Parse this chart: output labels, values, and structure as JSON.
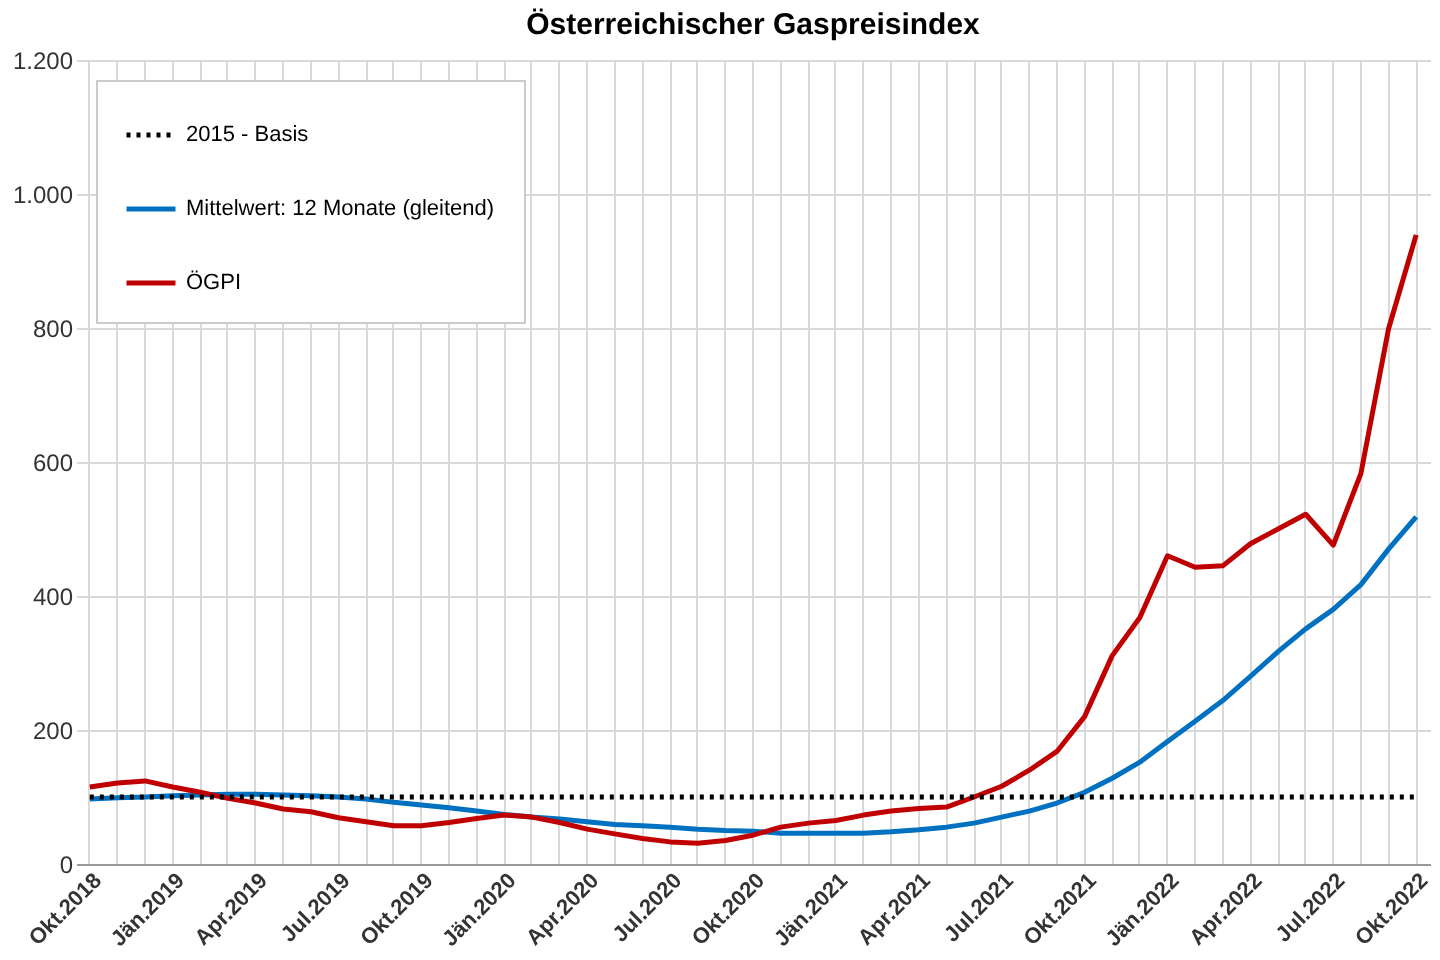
{
  "chart_data": {
    "type": "line",
    "title": "Österreichischer  Gaspreisindex",
    "categories": [
      "Okt.2018",
      null,
      null,
      "Jän.2019",
      null,
      null,
      "Apr.2019",
      null,
      null,
      "Jul.2019",
      null,
      null,
      "Okt.2019",
      null,
      null,
      "Jän.2020",
      null,
      null,
      "Apr.2020",
      null,
      null,
      "Jul.2020",
      null,
      null,
      "Okt.2020",
      null,
      null,
      "Jän.2021",
      null,
      null,
      "Apr.2021",
      null,
      null,
      "Jul.2021",
      null,
      null,
      "Okt.2021",
      null,
      null,
      "Jän.2022",
      null,
      null,
      "Apr.2022",
      null,
      null,
      "Jul.2022",
      null,
      null,
      "Okt.2022"
    ],
    "series": [
      {
        "name": "Mittelwert: 12 Monate (gleitend)",
        "color": "#0070c0",
        "values": [
          97,
          99,
          100,
          102,
          103,
          104,
          104,
          103,
          102,
          100,
          97,
          92,
          88,
          84,
          79,
          74,
          70,
          67,
          63,
          59,
          57,
          55,
          52,
          50,
          49,
          46,
          46,
          46,
          46,
          48,
          51,
          55,
          61,
          70,
          79,
          91,
          107,
          128,
          152,
          183,
          213,
          244,
          280,
          317,
          351,
          380,
          417,
          470,
          518
        ]
      },
      {
        "name": "ÖGPI",
        "color": "#c00000",
        "values": [
          115,
          121,
          124,
          115,
          107,
          98,
          91,
          82,
          78,
          69,
          63,
          57,
          57,
          62,
          68,
          73,
          70,
          62,
          52,
          45,
          38,
          33,
          31,
          35,
          43,
          55,
          61,
          65,
          73,
          79,
          83,
          85,
          100,
          116,
          140,
          168,
          220,
          311,
          368,
          460,
          443,
          445,
          478,
          500,
          522,
          476,
          583,
          799,
          939
        ]
      }
    ],
    "ref_lines": [
      {
        "axis": "y",
        "value": 100,
        "label": "2015 - Basis",
        "color": "#000000",
        "line_style": "dotted"
      }
    ],
    "ylim": [
      0,
      1200
    ],
    "yticks": [
      0,
      200,
      400,
      600,
      800,
      {
        "value": 1000,
        "label": "1.000"
      },
      {
        "value": 1200,
        "label": "1.200"
      }
    ],
    "grid": true,
    "legend": "top left",
    "line_style": "solid",
    "marker": "none"
  }
}
